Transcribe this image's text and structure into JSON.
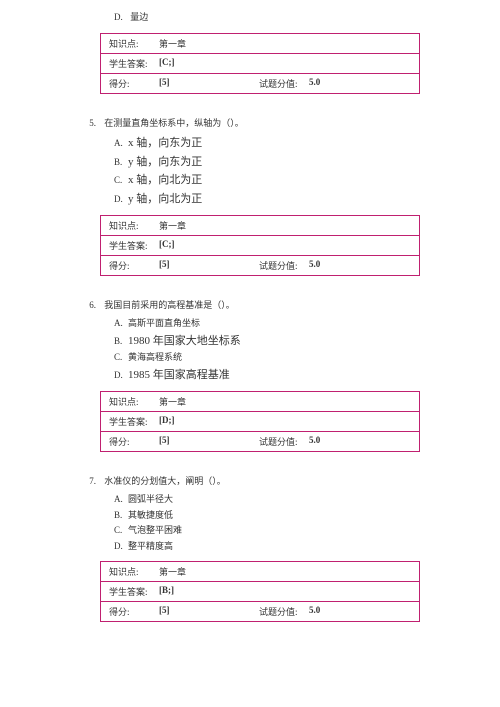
{
  "stray_option": {
    "letter": "D.",
    "text": "量边"
  },
  "box_labels": {
    "knowledge": "知识点:",
    "student_answer": "学生答案:",
    "score": "得分:",
    "points": "试题分值:"
  },
  "box0": {
    "knowledge": "第一章",
    "answer": "[C;]",
    "score": "[5]",
    "points": "5.0"
  },
  "q5": {
    "num": "5.",
    "text": "在测量直角坐标系中，纵轴为（）。",
    "opts": [
      {
        "letter": "A.",
        "text": "x 轴，向东为正",
        "big": true
      },
      {
        "letter": "B.",
        "text": "y 轴，向东为正",
        "big": true
      },
      {
        "letter": "C.",
        "text": "x 轴，向北为正",
        "big": true
      },
      {
        "letter": "D.",
        "text": "y 轴，向北为正",
        "big": true
      }
    ],
    "box": {
      "knowledge": "第一章",
      "answer": "[C;]",
      "score": "[5]",
      "points": "5.0"
    }
  },
  "q6": {
    "num": "6.",
    "text": "我国目前采用的高程基准是（）。",
    "opts": [
      {
        "letter": "A.",
        "text": "高斯平面直角坐标",
        "big": false
      },
      {
        "letter": "B.",
        "text": "1980 年国家大地坐标系",
        "big": true
      },
      {
        "letter": "C.",
        "text": "黄海高程系统",
        "big": false
      },
      {
        "letter": "D.",
        "text": "1985 年国家高程基准",
        "big": true
      }
    ],
    "box": {
      "knowledge": "第一章",
      "answer": "[D;]",
      "score": "[5]",
      "points": "5.0"
    }
  },
  "q7": {
    "num": "7.",
    "text": "水准仪的分划值大，阐明（）。",
    "opts": [
      {
        "letter": "A.",
        "text": "圆弧半径大",
        "big": false
      },
      {
        "letter": "B.",
        "text": "其敏捷度低",
        "big": false
      },
      {
        "letter": "C.",
        "text": "气泡整平困难",
        "big": false
      },
      {
        "letter": "D.",
        "text": "整平精度高",
        "big": false
      }
    ],
    "box": {
      "knowledge": "第一章",
      "answer": "[B;]",
      "score": "[5]",
      "points": "5.0"
    }
  }
}
